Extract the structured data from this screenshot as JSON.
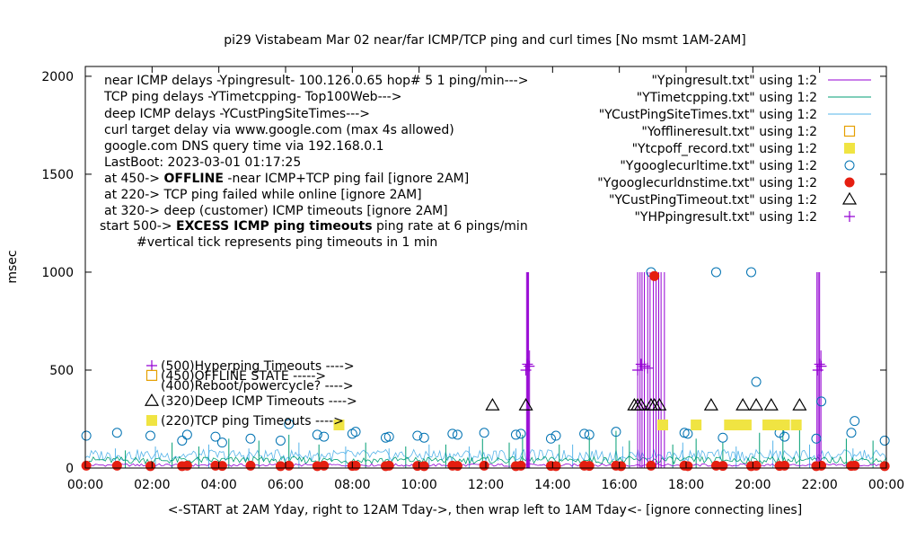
{
  "chart_data": {
    "type": "line",
    "title": "pi29 Vistabeam Mar 02  near/far ICMP/TCP ping and curl times [No msmt 1AM-2AM]",
    "xlabel": "<-START at 2AM Yday, right to 12AM Tday->, then wrap left to 1AM Tday<- [ignore connecting lines]",
    "ylabel": "msec",
    "xlim": [
      0,
      24
    ],
    "ylim": [
      0,
      2050
    ],
    "x_ticks": [
      {
        "v": 0,
        "label": "00:00"
      },
      {
        "v": 2,
        "label": "02:00"
      },
      {
        "v": 4,
        "label": "04:00"
      },
      {
        "v": 6,
        "label": "06:00"
      },
      {
        "v": 8,
        "label": "08:00"
      },
      {
        "v": 10,
        "label": "10:00"
      },
      {
        "v": 12,
        "label": "12:00"
      },
      {
        "v": 14,
        "label": "14:00"
      },
      {
        "v": 16,
        "label": "16:00"
      },
      {
        "v": 18,
        "label": "18:00"
      },
      {
        "v": 20,
        "label": "20:00"
      },
      {
        "v": 22,
        "label": "22:00"
      },
      {
        "v": 24,
        "label": "00:00"
      }
    ],
    "y_ticks": [
      {
        "v": 0,
        "label": "0"
      },
      {
        "v": 500,
        "label": "500"
      },
      {
        "v": 1000,
        "label": "1000"
      },
      {
        "v": 1500,
        "label": "1500"
      },
      {
        "v": 2000,
        "label": "2000"
      }
    ],
    "grid": false,
    "info_lines": [
      {
        "x": 116,
        "y": 94,
        "bold": "",
        "text": "near ICMP delays -Ypingresult- 100.126.0.65 hop# 5 1 ping/min--->"
      },
      {
        "x": 116,
        "y": 112,
        "bold": "",
        "text": "TCP ping delays -YTimetcpping- Top100Web--->"
      },
      {
        "x": 116,
        "y": 131,
        "bold": "",
        "text": "deep ICMP delays -YCustPingSiteTimes--->"
      },
      {
        "x": 116,
        "y": 149,
        "bold": "",
        "text": "curl target delay via www.google.com (max 4s allowed)"
      },
      {
        "x": 116,
        "y": 167,
        "bold": "",
        "text": "google.com DNS query time via 192.168.0.1"
      },
      {
        "x": 116,
        "y": 185,
        "bold": "",
        "text": "LastBoot: 2023-03-01 01:17:25"
      },
      {
        "x": 116,
        "y": 203,
        "pre": "at 450-> ",
        "bold": "OFFLINE",
        "text": " -near ICMP+TCP ping fail [ignore 2AM]"
      },
      {
        "x": 116,
        "y": 221,
        "bold": "",
        "text": "at 220-> TCP ping failed while online [ignore 2AM]"
      },
      {
        "x": 116,
        "y": 239,
        "bold": "",
        "text": "at 320-> deep (customer) ICMP timeouts [ignore 2AM]"
      },
      {
        "x": 111,
        "y": 256,
        "pre": "start 500-> ",
        "bold": "EXCESS ICMP ping timeouts",
        "text": "  ping rate at 6 pings/min"
      },
      {
        "x": 152,
        "y": 274,
        "bold": "",
        "text": "#vertical tick represents ping timeouts in 1 min"
      }
    ],
    "legend": [
      {
        "label": "\"Ypingresult.txt\" using 1:2",
        "symbol": "line",
        "color": "#9400d3"
      },
      {
        "label": "\"YTimetcpping.txt\" using 1:2",
        "symbol": "line",
        "color": "#009e73"
      },
      {
        "label": "\"YCustPingSiteTimes.txt\" using 1:2",
        "symbol": "line",
        "color": "#56b4e9"
      },
      {
        "label": "\"Yofflineresult.txt\" using 1:2",
        "symbol": "sq-open",
        "color": "#e69f00"
      },
      {
        "label": "\"Ytcpoff_record.txt\" using 1:2",
        "symbol": "sq-fill",
        "color": "#f0e442"
      },
      {
        "label": "\"Ygooglecurltime.txt\" using 1:2",
        "symbol": "circle",
        "color": "#0072b2"
      },
      {
        "label": "\"Ygooglecurldnstime.txt\" using 1:2",
        "symbol": "dot",
        "color": "#e51e10"
      },
      {
        "label": "\"YCustPingTimeout.txt\" using 1:2",
        "symbol": "triangle",
        "color": "#000000"
      },
      {
        "label": "\"YHPpingresult.txt\" using 1:2",
        "symbol": "plus",
        "color": "#9400d3"
      }
    ],
    "key_labels": [
      {
        "symbol": "plus",
        "color": "#9400d3",
        "y": 500,
        "text": "(500)Hyperping Timeouts ---->"
      },
      {
        "symbol": "sq-open",
        "color": "#e69f00",
        "y": 450,
        "text": "(450)OFFLINE STATE ----->"
      },
      {
        "symbol": "none",
        "color": "#000000",
        "y": 400,
        "text": "(400)Reboot/powercycle? ---->"
      },
      {
        "symbol": "triangle",
        "color": "#000000",
        "y": 320,
        "text": "(320)Deep ICMP Timeouts ---->"
      },
      {
        "symbol": "sq-fill",
        "color": "#f0e442",
        "y": 220,
        "text": "(220)TCP ping Timeouts ---->"
      }
    ],
    "series": [
      {
        "name": "\"Ypingresult.txt\" using 1:2",
        "color": "#9400d3",
        "baseline": 15,
        "spikes": [
          [
            13.22,
            1000
          ],
          [
            13.25,
            1000
          ],
          [
            13.28,
            1000
          ],
          [
            13.31,
            600
          ],
          [
            16.55,
            1000
          ],
          [
            16.62,
            1000
          ],
          [
            16.68,
            1000
          ],
          [
            16.75,
            1000
          ],
          [
            16.85,
            1000
          ],
          [
            16.92,
            1000
          ],
          [
            17.02,
            1000
          ],
          [
            17.1,
            1000
          ],
          [
            17.18,
            1000
          ],
          [
            17.25,
            1000
          ],
          [
            17.35,
            1000
          ],
          [
            21.92,
            1000
          ],
          [
            21.96,
            1000
          ],
          [
            22.0,
            1000
          ],
          [
            22.04,
            600
          ]
        ]
      },
      {
        "name": "\"YTimetcpping.txt\" using 1:2",
        "color": "#009e73",
        "baseline": 40,
        "spikes": [
          [
            1.2,
            90
          ],
          [
            2.6,
            130
          ],
          [
            3.4,
            110
          ],
          [
            4.3,
            150
          ],
          [
            5.2,
            140
          ],
          [
            6.1,
            170
          ],
          [
            7.0,
            120
          ],
          [
            8.4,
            130
          ],
          [
            9.6,
            110
          ],
          [
            10.8,
            120
          ],
          [
            11.9,
            150
          ],
          [
            12.7,
            130
          ],
          [
            13.1,
            170
          ],
          [
            14.2,
            120
          ],
          [
            15.1,
            160
          ],
          [
            15.9,
            190
          ],
          [
            16.3,
            140
          ],
          [
            17.6,
            120
          ],
          [
            18.3,
            150
          ],
          [
            19.1,
            130
          ],
          [
            20.2,
            180
          ],
          [
            20.9,
            240
          ],
          [
            21.4,
            200
          ],
          [
            22.8,
            150
          ],
          [
            23.6,
            140
          ]
        ]
      },
      {
        "name": "\"YCustPingSiteTimes.txt\" using 1:2",
        "color": "#56b4e9",
        "baseline": 65,
        "spikes": [
          [
            0.9,
            100
          ],
          [
            2.1,
            110
          ],
          [
            3.7,
            120
          ],
          [
            4.9,
            100
          ],
          [
            6.4,
            130
          ],
          [
            7.8,
            110
          ],
          [
            9.1,
            100
          ],
          [
            10.3,
            120
          ],
          [
            11.5,
            110
          ],
          [
            12.9,
            100
          ],
          [
            14.6,
            120
          ],
          [
            16.1,
            110
          ],
          [
            17.9,
            130
          ],
          [
            19.5,
            110
          ],
          [
            20.6,
            140
          ],
          [
            21.7,
            120
          ],
          [
            23.0,
            100
          ]
        ]
      }
    ],
    "points": [
      {
        "name": "\"Ygooglecurltime.txt\" using 1:2",
        "symbol": "circle",
        "color": "#0072b2",
        "x": [
          0.03,
          0.95,
          1.95,
          2.9,
          3.05,
          3.9,
          4.1,
          4.95,
          5.85,
          6.1,
          6.95,
          7.15,
          8.0,
          8.1,
          9.0,
          9.1,
          9.95,
          10.15,
          11.0,
          11.15,
          11.95,
          12.9,
          13.05,
          13.95,
          14.1,
          14.95,
          15.1,
          15.9,
          16.95,
          17.95,
          18.05,
          18.9,
          19.1,
          19.95,
          20.1,
          20.8,
          20.95,
          21.9,
          22.05,
          22.95,
          23.05,
          23.95
        ],
        "y": [
          165,
          180,
          165,
          140,
          170,
          160,
          130,
          150,
          140,
          225,
          170,
          160,
          175,
          185,
          155,
          160,
          165,
          155,
          175,
          170,
          180,
          170,
          175,
          150,
          165,
          175,
          170,
          185,
          1000,
          180,
          175,
          1000,
          155,
          1000,
          440,
          180,
          160,
          150,
          340,
          180,
          240,
          140
        ]
      },
      {
        "name": "\"Ygooglecurldnstime.txt\" using 1:2",
        "symbol": "dot",
        "color": "#e51e10",
        "x": [
          0.03,
          0.95,
          1.95,
          2.9,
          3.05,
          3.9,
          4.1,
          4.95,
          5.85,
          6.1,
          6.95,
          7.15,
          8.0,
          8.1,
          9.0,
          9.1,
          9.95,
          10.15,
          11.0,
          11.15,
          11.95,
          12.9,
          13.05,
          13.95,
          14.1,
          14.95,
          15.1,
          15.9,
          16.05,
          16.95,
          17.05,
          17.95,
          18.05,
          18.9,
          19.1,
          19.95,
          20.1,
          20.8,
          20.95,
          21.9,
          22.05,
          22.95,
          23.05,
          23.95
        ],
        "y": [
          12,
          12,
          10,
          10,
          12,
          12,
          11,
          12,
          10,
          12,
          10,
          12,
          11,
          12,
          10,
          12,
          11,
          10,
          12,
          11,
          12,
          10,
          12,
          11,
          10,
          12,
          11,
          12,
          10,
          12,
          980,
          12,
          10,
          12,
          11,
          10,
          12,
          11,
          12,
          10,
          12,
          11,
          12,
          10
        ]
      },
      {
        "name": "\"YCustPingTimeout.txt\" using 1:2",
        "symbol": "triangle",
        "color": "#000000",
        "x": [
          12.2,
          13.2,
          16.45,
          16.55,
          16.65,
          16.95,
          17.05,
          17.2,
          18.75,
          19.7,
          20.1,
          20.55,
          21.4
        ],
        "y": [
          320,
          320,
          320,
          320,
          320,
          320,
          320,
          320,
          320,
          320,
          320,
          320,
          320
        ]
      },
      {
        "name": "\"Ytcpoff_record.txt\" using 1:2",
        "symbol": "sq-fill",
        "color": "#f0e442",
        "x": [
          7.6,
          17.3,
          18.3,
          19.3,
          19.55,
          19.8,
          20.45,
          20.7,
          20.95,
          21.3
        ],
        "y": [
          220,
          220,
          220,
          220,
          220,
          220,
          220,
          220,
          220,
          220
        ]
      },
      {
        "name": "\"YHPpingresult.txt\" using 1:2",
        "symbol": "plus",
        "color": "#9400d3",
        "x": [
          13.2,
          13.25,
          13.3,
          16.55,
          16.65,
          16.75,
          16.85,
          21.95,
          22.0,
          22.05
        ],
        "y": [
          500,
          530,
          520,
          500,
          530,
          520,
          510,
          500,
          530,
          520
        ]
      }
    ]
  }
}
